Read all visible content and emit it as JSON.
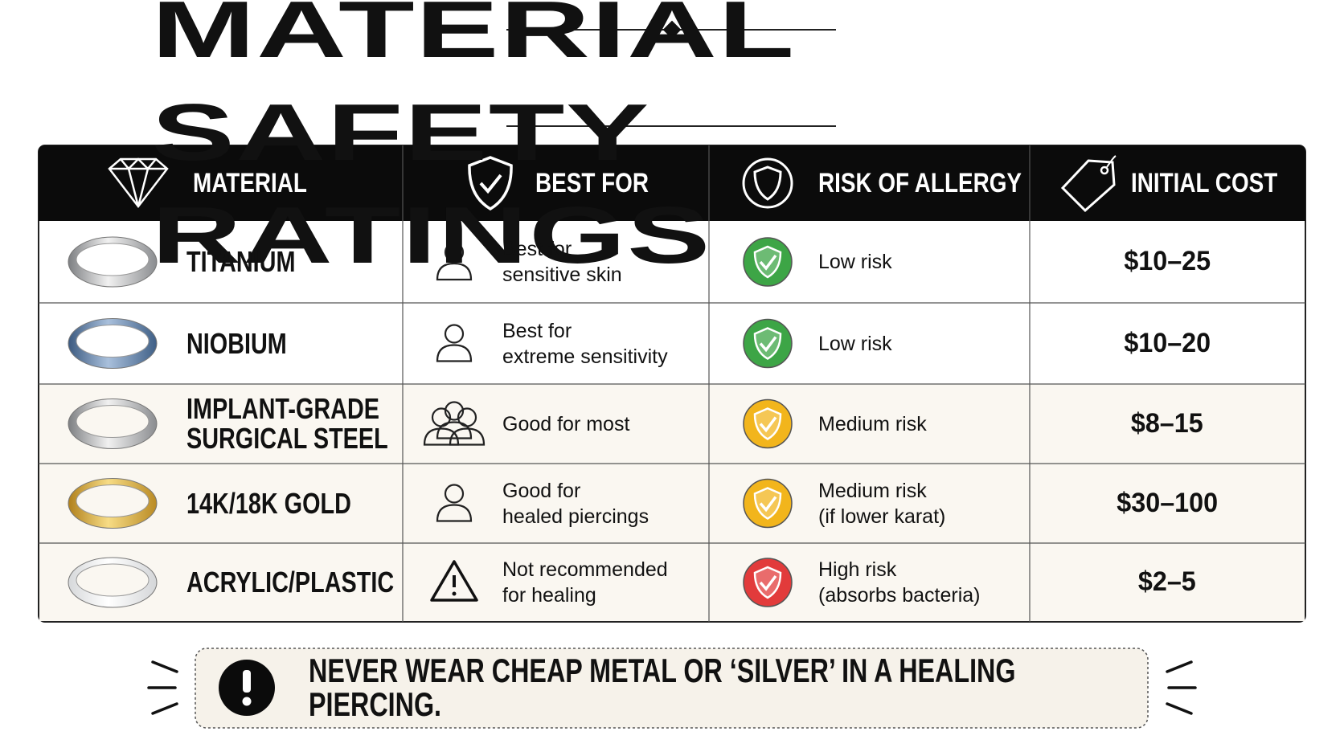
{
  "title": "JEWELRY MATERIAL SAFETY RATINGS",
  "table": {
    "headers": [
      "MATERIAL",
      "BEST FOR",
      "RISK OF ALLERGY",
      "INITIAL COST"
    ],
    "rows": [
      [
        "TITANIUM",
        "Best for\nsensitive skin",
        "Low risk",
        "$10–25"
      ],
      [
        "NIOBIUM",
        "Best for\nextreme sensitivity",
        "Low risk",
        "$10–20"
      ],
      [
        "IMPLANT-GRADE\nSURGICAL STEEL",
        "Good for most",
        "Medium risk",
        "$8–15"
      ],
      [
        "14K/18K GOLD",
        "Good for\nhealed piercings",
        "Medium risk\n(if lower karat)",
        "$30–100"
      ],
      [
        "ACRYLIC/PLASTIC",
        "Not recommended\nfor healing",
        "High risk\n(absorbs bacteria)",
        "$2–5"
      ]
    ]
  },
  "footer": {
    "warning": "NEVER WEAR CHEAP METAL OR ‘SILVER’ IN A HEALING PIERCING."
  }
}
